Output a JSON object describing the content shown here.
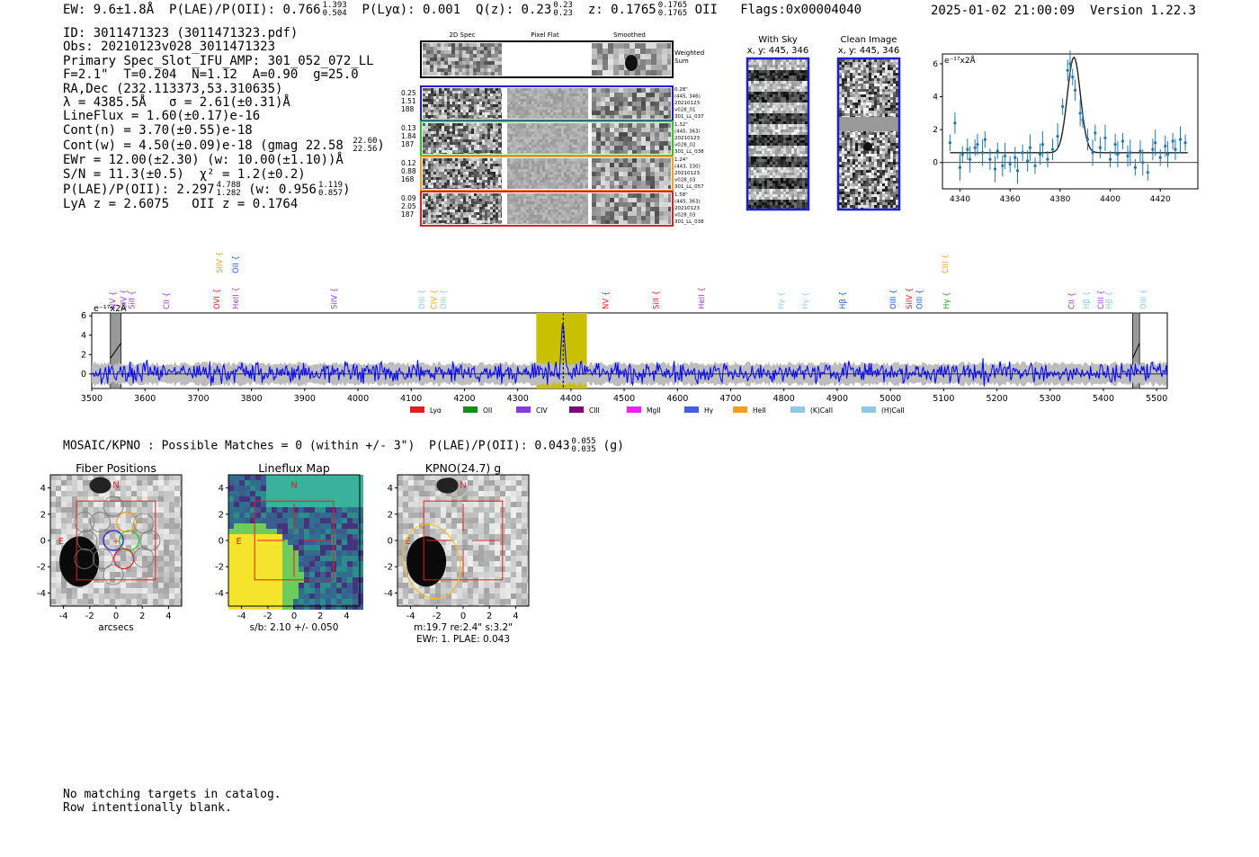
{
  "header": {
    "ew": "EW: 9.6±1.8Å",
    "plae_label": "P(LAE)/P(OII): 0.766",
    "plae_hi": "1.393",
    "plae_lo": "0.504",
    "plya": "P(Lyα): 0.001",
    "qz_label": "Q(z): 0.23",
    "qz_hi": "0.23",
    "qz_lo": "0.23",
    "z_label": "z: 0.1765",
    "z_hi": "0.1765",
    "z_lo": "0.1765",
    "z_line": "OII",
    "flags": "Flags:0x00004040",
    "datetime": "2025-01-02 21:00:09",
    "version": "Version 1.22.3"
  },
  "info": {
    "id": "ID: 3011471323 (3011471323.pdf)",
    "obs": "Obs: 20210123v028_3011471323",
    "primary": "Primary Spec_Slot_IFU_AMP: 301_052_072_LL",
    "params": "F=2.1\"  T=0.204  N=1.12  A=0.90  g=25.0",
    "radec": "RA,Dec (232.113373,53.310635)",
    "lambda_sigma": "λ = 4385.5Å   σ = 2.61(±0.31)Å",
    "lineflux": "LineFlux = 1.60(±0.17)e-16",
    "contn": "Cont(n) = 3.70(±0.55)e-18",
    "contw": "Cont(w) = 4.50(±0.09)e-18 (gmag 22.58",
    "gmag_hi": "22.60",
    "gmag_lo": "22.56",
    "ewr": "EWr = 12.00(±2.30) (w: 10.00(±1.10))Å",
    "sn": "S/N = 11.3(±0.5)  χ² = 1.2(±0.2)",
    "plae": "P(LAE)/P(OII): 2.297",
    "plae_hi": "4.788",
    "plae_lo": "1.282",
    "plae_w": "(w: 0.956",
    "plae_w_hi": "1.119",
    "plae_w_lo": "0.857",
    "lya_z": "LyA z = 2.6075   OII z = 0.1764"
  },
  "cutouts": {
    "col_labels": [
      "2D Spec",
      "Pixel Flat",
      "Smoothed"
    ],
    "weighted_sum": "Weighted Sum",
    "rows": [
      {
        "left": [
          "0.25",
          "1.51",
          "188"
        ],
        "right": [
          "0.28\"",
          "(445, 346)",
          "20210123",
          "v028_01",
          "301_LL_037"
        ],
        "color": "#1f1fd0"
      },
      {
        "left": [
          "0.13",
          "1.84",
          "187"
        ],
        "right": [
          "1.32\"",
          "(445, 363)",
          "20210123",
          "v028_02",
          "301_LL_038"
        ],
        "color": "#22cc22"
      },
      {
        "left": [
          "0.12",
          "0.88",
          "168"
        ],
        "right": [
          "1.24\"",
          "(443, 330)",
          "20210123",
          "v028_03",
          "301_LL_057"
        ],
        "color": "#f0a020"
      },
      {
        "left": [
          "0.09",
          "2.05",
          "187"
        ],
        "right": [
          "1.58\"",
          "(445, 363)",
          "20210123",
          "v028_03",
          "301_LL_038"
        ],
        "color": "#e02020"
      }
    ],
    "with_sky_title": "With Sky",
    "with_sky_xy": "x, y: 445, 346",
    "clean_title": "Clean Image",
    "clean_xy": "x, y: 445, 346"
  },
  "zoom_chart": {
    "type": "scatter",
    "ylabel": "e⁻¹⁷x2Å",
    "xlim": [
      4333,
      4435
    ],
    "ylim": [
      -1.6,
      6.6
    ],
    "xticks": [
      4340,
      4360,
      4380,
      4400,
      4420
    ],
    "yticks": [
      0,
      2,
      4,
      6
    ],
    "points": [
      [
        4336,
        1.2
      ],
      [
        4338,
        2.4
      ],
      [
        4340,
        -0.3
      ],
      [
        4341,
        0.5
      ],
      [
        4343,
        0.8
      ],
      [
        4344,
        0.2
      ],
      [
        4346,
        0.9
      ],
      [
        4347,
        1.1
      ],
      [
        4349,
        0.6
      ],
      [
        4350,
        1.4
      ],
      [
        4352,
        0.2
      ],
      [
        4354,
        -0.4
      ],
      [
        4355,
        0.7
      ],
      [
        4357,
        -0.2
      ],
      [
        4358,
        0.4
      ],
      [
        4360,
        -0.1
      ],
      [
        4362,
        0.3
      ],
      [
        4363,
        -0.5
      ],
      [
        4365,
        0.6
      ],
      [
        4367,
        0.1
      ],
      [
        4368,
        0.9
      ],
      [
        4370,
        -0.2
      ],
      [
        4372,
        0.5
      ],
      [
        4373,
        1.1
      ],
      [
        4375,
        0.2
      ],
      [
        4377,
        0.8
      ],
      [
        4379,
        1.6
      ],
      [
        4381,
        3.4
      ],
      [
        4383,
        5.6
      ],
      [
        4384,
        6.0
      ],
      [
        4385,
        5.2
      ],
      [
        4386,
        4.4
      ],
      [
        4388,
        3.0
      ],
      [
        4389,
        2.6
      ],
      [
        4391,
        1.4
      ],
      [
        4393,
        0.6
      ],
      [
        4394,
        1.8
      ],
      [
        4396,
        0.9
      ],
      [
        4398,
        1.5
      ],
      [
        4400,
        0.2
      ],
      [
        4402,
        1.1
      ],
      [
        4403,
        0.5
      ],
      [
        4405,
        1.3
      ],
      [
        4407,
        0.4
      ],
      [
        4408,
        0.6
      ],
      [
        4410,
        -0.3
      ],
      [
        4412,
        0.7
      ],
      [
        4413,
        0.0
      ],
      [
        4415,
        -0.6
      ],
      [
        4417,
        0.8
      ],
      [
        4418,
        1.2
      ],
      [
        4420,
        0.3
      ],
      [
        4422,
        1.0
      ],
      [
        4423,
        0.5
      ],
      [
        4425,
        1.3
      ],
      [
        4426,
        0.8
      ],
      [
        4428,
        1.4
      ],
      [
        4430,
        1.2
      ]
    ],
    "fit": {
      "center": 4385.5,
      "sigma": 2.61,
      "amp": 5.8,
      "cont": 0.6
    }
  },
  "chart_data": {
    "type": "line",
    "title": "",
    "ylabel": "e⁻¹⁷x2Å",
    "xlabel": "",
    "xlim": [
      3500,
      5520
    ],
    "ylim": [
      -1.5,
      6.3
    ],
    "xticks": [
      3500,
      3600,
      3700,
      3800,
      3900,
      4000,
      4100,
      4200,
      4300,
      4400,
      4500,
      4600,
      4700,
      4800,
      4900,
      5000,
      5100,
      5200,
      5300,
      5400,
      5500
    ],
    "yticks": [
      0,
      2,
      4,
      6
    ],
    "highlight_band": [
      4335,
      4430
    ],
    "line_center": 4385.5,
    "masked_regions": [
      [
        3535,
        3555
      ],
      [
        5455,
        5468
      ]
    ],
    "series": [
      {
        "name": "flux",
        "color": "#0000ff",
        "noise_seed": 17,
        "noise_amp": 1.4,
        "peak": 5.8,
        "peak_center": 4385.5,
        "peak_sigma": 2.61
      },
      {
        "name": "error",
        "color": "#b5b5b5",
        "band_amp": 1.0
      }
    ],
    "line_markers": [
      {
        "label": "NV",
        "x": 3540,
        "color": "#9a3ad0",
        "row": 0
      },
      {
        "label": "CIV",
        "x": 3560,
        "color": "#9a3ad0",
        "row": 0
      },
      {
        "label": "SiII",
        "x": 3575,
        "color": "#9a3ad0",
        "row": 0
      },
      {
        "label": "CII",
        "x": 3640,
        "color": "#9a3ad0",
        "row": 0
      },
      {
        "label": "OVI",
        "x": 3735,
        "color": "#e02020",
        "row": 0
      },
      {
        "label": "HeII",
        "x": 3770,
        "color": "#9a3ad0",
        "row": 0
      },
      {
        "label": "SiIV",
        "x": 3740,
        "color": "#f0a020",
        "row": 1
      },
      {
        "label": "OII",
        "x": 3770,
        "color": "#1f5fd0",
        "row": 1
      },
      {
        "label": "SiIV",
        "x": 3955,
        "color": "#9a3ad0",
        "row": 0
      },
      {
        "label": "OIII",
        "x": 4120,
        "color": "#8ecae6",
        "row": 0
      },
      {
        "label": "CIV",
        "x": 4143,
        "color": "#f0a020",
        "row": 0
      },
      {
        "label": "OIII",
        "x": 4160,
        "color": "#8ecae6",
        "row": 0
      },
      {
        "label": "NV",
        "x": 4465,
        "color": "#e02020",
        "row": 0
      },
      {
        "label": "SiII",
        "x": 4560,
        "color": "#e02020",
        "row": 0
      },
      {
        "label": "HeII",
        "x": 4645,
        "color": "#9a3ad0",
        "row": 0
      },
      {
        "label": "Hγ",
        "x": 4795,
        "color": "#8ecae6",
        "row": 0
      },
      {
        "label": "Hγ",
        "x": 4840,
        "color": "#8ecae6",
        "row": 0
      },
      {
        "label": "Hβ",
        "x": 4910,
        "color": "#1f5fd0",
        "row": 0
      },
      {
        "label": "OIII",
        "x": 5005,
        "color": "#1f5fd0",
        "row": 0
      },
      {
        "label": "SiIV",
        "x": 5035,
        "color": "#e02020",
        "row": 0
      },
      {
        "label": "OIII",
        "x": 5055,
        "color": "#1f5fd0",
        "row": 0
      },
      {
        "label": "Hγ",
        "x": 5105,
        "color": "#1a9a1a",
        "row": 0
      },
      {
        "label": "CIII",
        "x": 5103,
        "color": "#f0a020",
        "row": 1
      },
      {
        "label": "CII",
        "x": 5340,
        "color": "#9a3ad0",
        "row": 0
      },
      {
        "label": "Hβ",
        "x": 5368,
        "color": "#8ecae6",
        "row": 0
      },
      {
        "label": "CIII",
        "x": 5395,
        "color": "#9a3ad0",
        "row": 0
      },
      {
        "label": "Hβ",
        "x": 5410,
        "color": "#8ecae6",
        "row": 0
      },
      {
        "label": "OIII",
        "x": 5475,
        "color": "#8ecae6",
        "row": 0
      }
    ],
    "legend": [
      {
        "label": "Lyα",
        "color": "#e02020"
      },
      {
        "label": "OII",
        "color": "#1a8a1a"
      },
      {
        "label": "CIV",
        "color": "#8a3ae0"
      },
      {
        "label": "CIII",
        "color": "#7a0a7a"
      },
      {
        "label": "MgII",
        "color": "#f020f0"
      },
      {
        "label": "Hγ",
        "color": "#4060e0"
      },
      {
        "label": "HeII",
        "color": "#f0a020"
      },
      {
        "label": "(K)CaII",
        "color": "#8ecae6"
      },
      {
        "label": "(H)CaII",
        "color": "#8ecae6"
      }
    ]
  },
  "mosaic": {
    "summary": "MOSAIC/KPNO : Possible Matches = 0 (within +/- 3\")  P(LAE)/P(OII): 0.043",
    "summary_hi": "0.055",
    "summary_lo": "0.035",
    "summary_band": "(g)",
    "panels": [
      {
        "title": "Fiber Positions",
        "xlabel": "arcsecs",
        "footer": []
      },
      {
        "title": "Lineflux Map",
        "xlabel": "s/b: 2.10 +/- 0.050",
        "footer": []
      },
      {
        "title": "KPNO(24.7) g",
        "xlabel": "m:19.7  re:2.4\"  s:3.2\"",
        "footer": [
          "EWr: 1. PLAE: 0.043"
        ]
      }
    ],
    "ticks": [
      -4,
      -2,
      0,
      2,
      4
    ],
    "north_label": "N",
    "east_label": "E"
  },
  "catalog": {
    "line1": "No matching targets in catalog.",
    "line2": "Row intentionally blank."
  }
}
